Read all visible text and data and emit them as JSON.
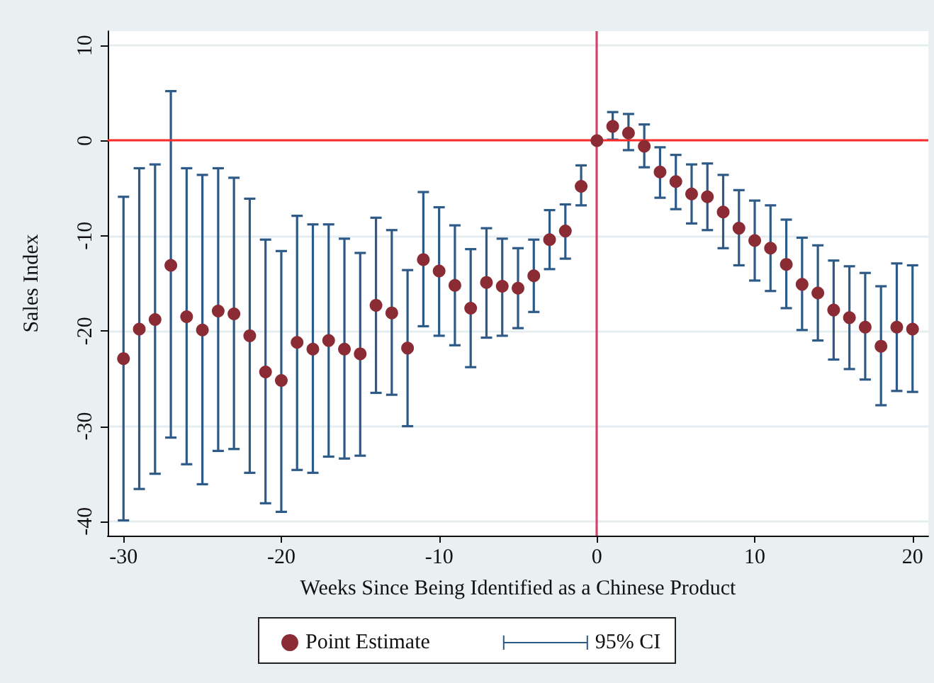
{
  "chart_data": {
    "type": "scatter",
    "xlabel": "Weeks Since Being Identified as a Chinese Product",
    "ylabel": "Sales Index",
    "x": [
      -30,
      -29,
      -28,
      -27,
      -26,
      -25,
      -24,
      -23,
      -22,
      -21,
      -20,
      -19,
      -18,
      -17,
      -16,
      -15,
      -14,
      -13,
      -12,
      -11,
      -10,
      -9,
      -8,
      -7,
      -6,
      -5,
      -4,
      -3,
      -2,
      -1,
      0,
      1,
      2,
      3,
      4,
      5,
      6,
      7,
      8,
      9,
      10,
      11,
      12,
      13,
      14,
      15,
      16,
      17,
      18,
      19,
      20
    ],
    "series": [
      {
        "name": "Point Estimate",
        "type": "scatter",
        "color": "#8b2c35",
        "values": [
          -22.9,
          -19.8,
          -18.8,
          -13.1,
          -18.5,
          -19.9,
          -17.9,
          -18.2,
          -20.5,
          -24.3,
          -25.2,
          -21.2,
          -21.9,
          -21.0,
          -21.9,
          -22.4,
          -17.3,
          -18.1,
          -21.8,
          -12.5,
          -13.7,
          -15.2,
          -17.6,
          -14.9,
          -15.3,
          -15.5,
          -14.2,
          -10.4,
          -9.5,
          -4.8,
          0,
          1.5,
          0.8,
          -0.6,
          -3.3,
          -4.3,
          -5.6,
          -5.9,
          -7.5,
          -9.2,
          -10.5,
          -11.3,
          -13.0,
          -15.1,
          -16.0,
          -17.8,
          -18.6,
          -19.6,
          -21.6,
          -19.6,
          -19.8
        ],
        "errors": [
          [
            -39.9,
            -5.9
          ],
          [
            -36.6,
            -2.9
          ],
          [
            -35.0,
            -2.5
          ],
          [
            -31.2,
            5.2
          ],
          [
            -34.0,
            -2.9
          ],
          [
            -36.1,
            -3.6
          ],
          [
            -32.6,
            -2.9
          ],
          [
            -32.4,
            -3.9
          ],
          [
            -34.9,
            -6.1
          ],
          [
            -38.1,
            -10.4
          ],
          [
            -39.0,
            -11.6
          ],
          [
            -34.6,
            -7.9
          ],
          [
            -34.9,
            -8.8
          ],
          [
            -33.2,
            -8.8
          ],
          [
            -33.4,
            -10.3
          ],
          [
            -33.1,
            -11.8
          ],
          [
            -26.5,
            -8.1
          ],
          [
            -26.7,
            -9.4
          ],
          [
            -30.0,
            -13.6
          ],
          [
            -19.5,
            -5.4
          ],
          [
            -20.5,
            -7.0
          ],
          [
            -21.5,
            -8.9
          ],
          [
            -23.8,
            -11.4
          ],
          [
            -20.7,
            -9.2
          ],
          [
            -20.5,
            -10.3
          ],
          [
            -19.7,
            -11.3
          ],
          [
            -18.0,
            -10.4
          ],
          [
            -13.5,
            -7.3
          ],
          [
            -12.4,
            -6.7
          ],
          [
            -6.8,
            -2.6
          ],
          null,
          [
            0.1,
            3.0
          ],
          [
            -1.0,
            2.8
          ],
          [
            -2.8,
            1.7
          ],
          [
            -6.0,
            -0.7
          ],
          [
            -7.2,
            -1.5
          ],
          [
            -8.7,
            -2.5
          ],
          [
            -9.4,
            -2.4
          ],
          [
            -11.3,
            -3.6
          ],
          [
            -13.1,
            -5.2
          ],
          [
            -14.7,
            -6.3
          ],
          [
            -15.8,
            -6.8
          ],
          [
            -17.6,
            -8.3
          ],
          [
            -19.9,
            -10.2
          ],
          [
            -21.0,
            -11.0
          ],
          [
            -23.0,
            -12.6
          ],
          [
            -24.0,
            -13.2
          ],
          [
            -25.1,
            -13.9
          ],
          [
            -27.8,
            -15.3
          ],
          [
            -26.3,
            -12.9
          ],
          [
            -26.4,
            -13.1
          ]
        ]
      }
    ],
    "annotations": [
      "95% CI"
    ],
    "marker": "circle",
    "xlim": [
      -31,
      21
    ],
    "xticks": [
      -30,
      -20,
      -10,
      0,
      10,
      20
    ],
    "ylim": [
      -41.5,
      11.5
    ],
    "yticks": [
      -40,
      -30,
      -20,
      -10,
      0,
      10
    ],
    "grid": "y",
    "legend": "bottom",
    "ref_lines": [
      {
        "axis": "y",
        "value": 0,
        "color": "#ff2a2a"
      },
      {
        "axis": "x",
        "value": 0,
        "color": "#d2456a"
      }
    ]
  }
}
